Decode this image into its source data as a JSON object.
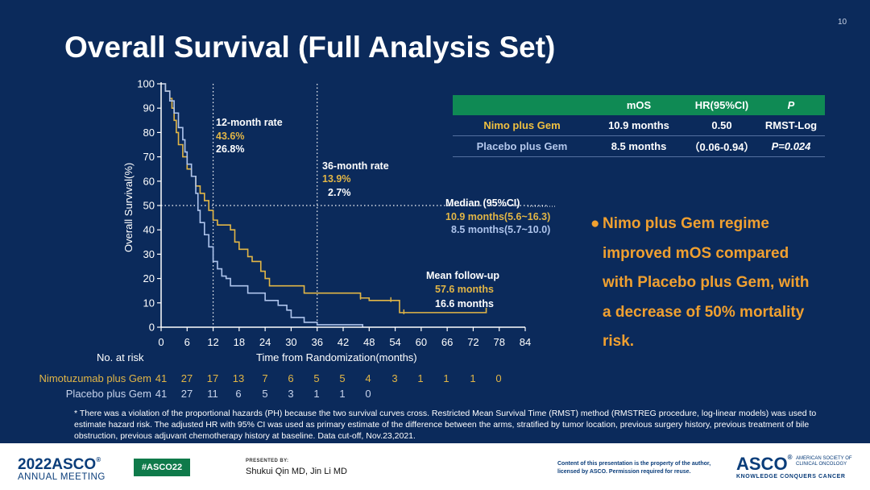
{
  "slide": {
    "page_number": "10",
    "title": "Overall Survival (Full Analysis Set)"
  },
  "colors": {
    "background": "#0b2a5b",
    "nimo": "#e2b646",
    "placebo": "#aec4ec",
    "accent_orange": "#f0a030",
    "table_header": "#0f8a54"
  },
  "chart_data": {
    "type": "line",
    "title": "",
    "xlabel": "Time from Randomization(months)",
    "ylabel": "Overall Survival(%)",
    "xlim": [
      0,
      84
    ],
    "ylim": [
      0,
      100
    ],
    "xticks": [
      0,
      6,
      12,
      18,
      24,
      30,
      36,
      42,
      48,
      54,
      60,
      66,
      72,
      78,
      84
    ],
    "yticks": [
      0,
      10,
      20,
      30,
      40,
      50,
      60,
      70,
      80,
      90,
      100
    ],
    "series": [
      {
        "name": "Nimotuzumab plus Gem",
        "color_key": "nimo",
        "step_points": [
          [
            0,
            100
          ],
          [
            1,
            97
          ],
          [
            2,
            94
          ],
          [
            2.5,
            90
          ],
          [
            3,
            85
          ],
          [
            3.5,
            80
          ],
          [
            4,
            75
          ],
          [
            5,
            70
          ],
          [
            6,
            65
          ],
          [
            7,
            62
          ],
          [
            8,
            58
          ],
          [
            9,
            55
          ],
          [
            10,
            52
          ],
          [
            11,
            48
          ],
          [
            12,
            44
          ],
          [
            13,
            42
          ],
          [
            16,
            40
          ],
          [
            17,
            35
          ],
          [
            18,
            32
          ],
          [
            20,
            29
          ],
          [
            21,
            27
          ],
          [
            23,
            23
          ],
          [
            24,
            20
          ],
          [
            25,
            17
          ],
          [
            33,
            14
          ],
          [
            46,
            12
          ],
          [
            48,
            11
          ],
          [
            55,
            6
          ],
          [
            75,
            6
          ],
          [
            75,
            8
          ]
        ],
        "censor_marks": [
          [
            46,
            12
          ],
          [
            53,
            11
          ],
          [
            56,
            6
          ]
        ]
      },
      {
        "name": "Placebo plus Gem",
        "color_key": "placebo",
        "step_points": [
          [
            0,
            100
          ],
          [
            1,
            97
          ],
          [
            2,
            93
          ],
          [
            3,
            88
          ],
          [
            4,
            82
          ],
          [
            5,
            77
          ],
          [
            5.5,
            72
          ],
          [
            6,
            67
          ],
          [
            7,
            62
          ],
          [
            8,
            55
          ],
          [
            8.5,
            48
          ],
          [
            9,
            43
          ],
          [
            10,
            38
          ],
          [
            11,
            33
          ],
          [
            12,
            27
          ],
          [
            13,
            24
          ],
          [
            14,
            21
          ],
          [
            15,
            20
          ],
          [
            16,
            17
          ],
          [
            20,
            14
          ],
          [
            24,
            11
          ],
          [
            27,
            9
          ],
          [
            29,
            7
          ],
          [
            30,
            4
          ],
          [
            33,
            2
          ],
          [
            36,
            1
          ],
          [
            45,
            1
          ],
          [
            46.5,
            0
          ]
        ],
        "censor_marks": []
      }
    ],
    "reference_lines": {
      "vertical_months": [
        12,
        36
      ],
      "horizontal_percent": 50
    },
    "annotations": {
      "rate_12": {
        "title": "12-month rate",
        "nimo": "43.6%",
        "placebo": "26.8%"
      },
      "rate_36": {
        "title": "36-month rate",
        "nimo": "13.9%",
        "placebo": "2.7%"
      },
      "median": {
        "title": "Median (95%CI)",
        "nimo": "10.9 months(5.6~16.3)",
        "placebo": "8.5 months(5.7~10.0)"
      },
      "followup": {
        "title": "Mean follow-up",
        "nimo": "57.6 months",
        "placebo": "16.6 months"
      }
    }
  },
  "results_table": {
    "headers": [
      "",
      "mOS",
      "HR(95%CI)",
      "P"
    ],
    "rows": [
      [
        "Nimo plus Gem",
        "10.9 months",
        "0.50",
        "RMST-Log"
      ],
      [
        "Placebo plus Gem",
        "8.5 months",
        "（0.06-0.94）",
        "P=0.024"
      ]
    ]
  },
  "conclusion": {
    "bullet": "●",
    "lines": [
      "Nimo plus Gem regime",
      "improved mOS compared",
      "with Placebo plus Gem, with",
      "a decrease of 50% mortality",
      "risk."
    ]
  },
  "risk_table": {
    "header": "No. at risk",
    "rows": [
      {
        "label": "Nimotuzumab plus Gem",
        "values": [
          "41",
          "27",
          "17",
          "13",
          "7",
          "6",
          "5",
          "5",
          "4",
          "3",
          "1",
          "1",
          "1",
          "0"
        ]
      },
      {
        "label": "Placebo plus Gem",
        "values": [
          "41",
          "27",
          "11",
          "6",
          "5",
          "3",
          "1",
          "1",
          "0"
        ]
      }
    ]
  },
  "footnote": "* There was a violation of the proportional hazards (PH) because the two survival  curves cross. Restricted Mean Survival Time (RMST) method (RMSTREG procedure, log-linear models) was used to estimate hazard risk. The adjusted HR with 95% CI was used as primary estimate of the difference between the arms, stratified by tumor location, previous surgery history, previous treatment of bile obstruction, previous adjuvant chemotherapy history at baseline. Data cut-off, Nov.23,2021.",
  "footer": {
    "meeting_year": "2022",
    "meeting_brand": "ASCO",
    "meeting_sub": "ANNUAL MEETING",
    "hashtag": "#ASCO22",
    "presented_by_label": "PRESENTED BY:",
    "presenter": "Shukui Qin  MD, Jin Li MD",
    "copyright": "Content of this presentation is the property of the author, licensed by ASCO. Permission required for reuse.",
    "logo": "ASCO",
    "society": "AMERICAN SOCIETY OF CLINICAL ONCOLOGY",
    "tagline": "KNOWLEDGE CONQUERS CANCER"
  }
}
